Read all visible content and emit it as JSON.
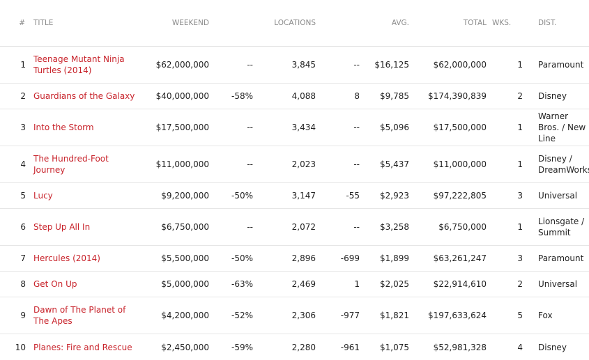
{
  "headers": {
    "rank": "#",
    "title": "TITLE",
    "weekend": "WEEKEND",
    "change": "",
    "locations": "LOCATIONS",
    "loc_change": "",
    "avg": "AVG.",
    "total": "TOTAL",
    "wks": "WKS.",
    "dist": "DIST."
  },
  "rows": [
    {
      "rank": "1",
      "title": "Teenage Mutant Ninja Turtles (2014)",
      "weekend": "$62,000,000",
      "change": "--",
      "locations": "3,845",
      "loc_change": "--",
      "avg": "$16,125",
      "total": "$62,000,000",
      "wks": "1",
      "dist": "Paramount"
    },
    {
      "rank": "2",
      "title": "Guardians of the Galaxy",
      "weekend": "$40,000,000",
      "change": "-58%",
      "locations": "4,088",
      "loc_change": "8",
      "avg": "$9,785",
      "total": "$174,390,839",
      "wks": "2",
      "dist": "Disney"
    },
    {
      "rank": "3",
      "title": "Into the Storm",
      "weekend": "$17,500,000",
      "change": "--",
      "locations": "3,434",
      "loc_change": "--",
      "avg": "$5,096",
      "total": "$17,500,000",
      "wks": "1",
      "dist": "Warner Bros. / New Line"
    },
    {
      "rank": "4",
      "title": "The Hundred-Foot Journey",
      "weekend": "$11,000,000",
      "change": "--",
      "locations": "2,023",
      "loc_change": "--",
      "avg": "$5,437",
      "total": "$11,000,000",
      "wks": "1",
      "dist": "Disney / DreamWorks"
    },
    {
      "rank": "5",
      "title": "Lucy",
      "weekend": "$9,200,000",
      "change": "-50%",
      "locations": "3,147",
      "loc_change": "-55",
      "avg": "$2,923",
      "total": "$97,222,805",
      "wks": "3",
      "dist": "Universal"
    },
    {
      "rank": "6",
      "title": "Step Up All In",
      "weekend": "$6,750,000",
      "change": "--",
      "locations": "2,072",
      "loc_change": "--",
      "avg": "$3,258",
      "total": "$6,750,000",
      "wks": "1",
      "dist": "Lionsgate / Summit"
    },
    {
      "rank": "7",
      "title": "Hercules (2014)",
      "weekend": "$5,500,000",
      "change": "-50%",
      "locations": "2,896",
      "loc_change": "-699",
      "avg": "$1,899",
      "total": "$63,261,247",
      "wks": "3",
      "dist": "Paramount"
    },
    {
      "rank": "8",
      "title": "Get On Up",
      "weekend": "$5,000,000",
      "change": "-63%",
      "locations": "2,469",
      "loc_change": "1",
      "avg": "$2,025",
      "total": "$22,914,610",
      "wks": "2",
      "dist": "Universal"
    },
    {
      "rank": "9",
      "title": "Dawn of The Planet of The Apes",
      "weekend": "$4,200,000",
      "change": "-52%",
      "locations": "2,306",
      "loc_change": "-977",
      "avg": "$1,821",
      "total": "$197,633,624",
      "wks": "5",
      "dist": "Fox"
    },
    {
      "rank": "10",
      "title": "Planes: Fire and Rescue",
      "weekend": "$2,450,000",
      "change": "-59%",
      "locations": "2,280",
      "loc_change": "-961",
      "avg": "$1,075",
      "total": "$52,981,328",
      "wks": "4",
      "dist": "Disney"
    }
  ]
}
